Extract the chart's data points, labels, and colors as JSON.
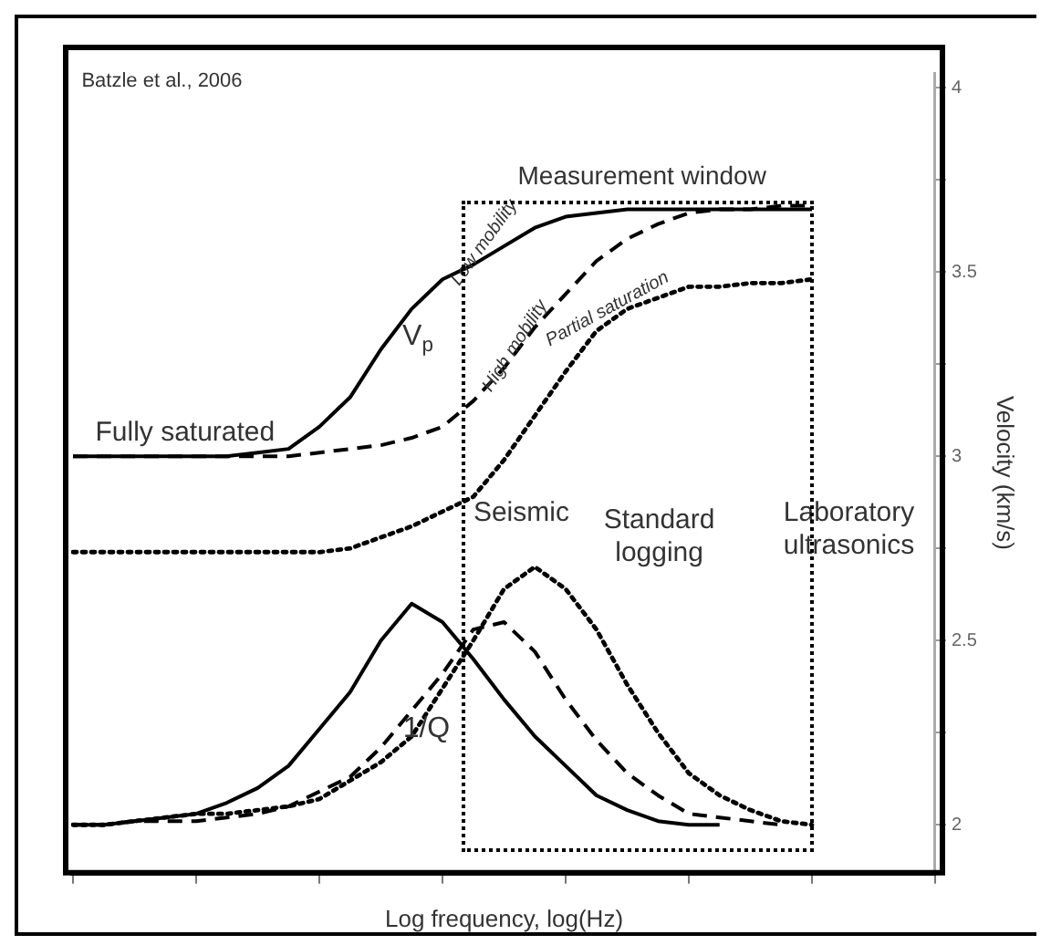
{
  "chart_data": {
    "type": "line",
    "xlabel": "Log frequency, log(Hz)",
    "ylabel": "Velocity (km/s)",
    "categories": [
      null,
      null,
      null,
      null,
      null,
      null,
      null,
      null,
      null,
      null,
      null,
      null,
      null,
      null,
      null,
      null,
      null,
      null,
      null,
      null,
      null,
      null,
      null,
      null,
      null,
      null,
      null,
      null,
      null
    ],
    "ylim": [
      1.87,
      4.04
    ],
    "yticks": [
      {
        "value": 2,
        "label": "2"
      },
      {
        "value": 2.25,
        "label": null
      },
      {
        "value": 2.5,
        "label": "2.5"
      },
      {
        "value": 2.75,
        "label": null
      },
      {
        "value": 3,
        "label": "3"
      },
      {
        "value": 3.25,
        "label": null
      },
      {
        "value": 3.5,
        "label": "3.5"
      },
      {
        "value": 3.75,
        "label": null
      },
      {
        "value": 4,
        "label": "4"
      }
    ],
    "tick_labels": "y",
    "grid": false,
    "legend": false,
    "marker": "none",
    "series": [
      {
        "name": "Low mobility",
        "color": "#000000",
        "line_style": "solid",
        "values": [
          3.0,
          3.0,
          3.0,
          3.0,
          3.0,
          3.0,
          3.01,
          3.02,
          3.08,
          3.16,
          3.29,
          3.4,
          3.48,
          3.52,
          3.57,
          3.62,
          3.65,
          3.66,
          3.67,
          3.67,
          3.67,
          3.67,
          3.67,
          3.67,
          3.67,
          null,
          null,
          null,
          null
        ]
      },
      {
        "name": "High mobility",
        "color": "#000000",
        "line_style": "dashed",
        "values": [
          3.0,
          3.0,
          3.0,
          3.0,
          3.0,
          3.0,
          3.0,
          3.0,
          3.01,
          3.02,
          3.03,
          3.05,
          3.08,
          3.15,
          3.24,
          3.35,
          3.44,
          3.53,
          3.59,
          3.63,
          3.66,
          3.67,
          3.67,
          3.68,
          3.68,
          null,
          null,
          null,
          null
        ]
      },
      {
        "name": "Partial saturation",
        "color": "#000000",
        "line_style": "dotted",
        "values": [
          2.74,
          2.74,
          2.74,
          2.74,
          2.74,
          2.74,
          2.74,
          2.74,
          2.74,
          2.75,
          2.78,
          2.81,
          2.85,
          2.89,
          2.99,
          3.11,
          3.23,
          3.34,
          3.4,
          3.43,
          3.46,
          3.46,
          3.47,
          3.47,
          3.48,
          null,
          null,
          null,
          null
        ]
      },
      {
        "color": "#000000",
        "line_style": "solid",
        "values": [
          2.0,
          2.0,
          2.01,
          2.02,
          2.03,
          2.06,
          2.1,
          2.16,
          2.26,
          2.36,
          2.5,
          2.6,
          2.55,
          2.45,
          2.34,
          2.24,
          2.16,
          2.08,
          2.04,
          2.01,
          2.0,
          2.0,
          null,
          null,
          null,
          null,
          null,
          null,
          null
        ]
      },
      {
        "color": "#000000",
        "line_style": "dashed",
        "values": [
          2.0,
          2.0,
          2.01,
          2.01,
          2.01,
          2.02,
          2.03,
          2.05,
          2.09,
          2.13,
          2.21,
          2.31,
          2.41,
          2.53,
          2.55,
          2.47,
          2.34,
          2.23,
          2.14,
          2.08,
          2.03,
          2.02,
          2.01,
          2.0,
          null,
          null,
          null,
          null,
          null
        ]
      },
      {
        "color": "#000000",
        "line_style": "dotted",
        "values": [
          2.0,
          2.0,
          2.01,
          2.02,
          2.03,
          2.03,
          2.04,
          2.05,
          2.07,
          2.12,
          2.17,
          2.24,
          2.37,
          2.5,
          2.64,
          2.7,
          2.64,
          2.53,
          2.38,
          2.25,
          2.14,
          2.08,
          2.04,
          2.01,
          2.0,
          null,
          null,
          null,
          null
        ]
      }
    ],
    "annotations": [
      "Batzle et al., 2006",
      "Measurement window",
      "Fully saturated",
      "V$_{p}$",
      "1/Q",
      "Seismic",
      "Standard logging",
      "Laboratory ultrasonics"
    ]
  }
}
